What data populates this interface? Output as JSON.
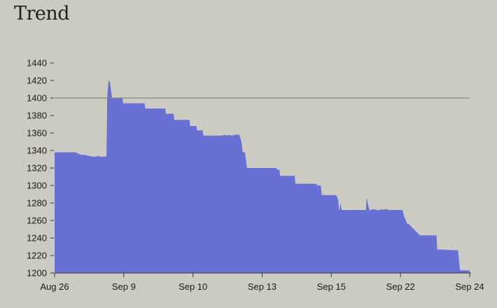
{
  "chart_data": {
    "type": "area",
    "title": "Trend",
    "xlabel": "",
    "ylabel": "",
    "ylim": [
      1200,
      1440
    ],
    "yticks": [
      1200,
      1220,
      1240,
      1260,
      1280,
      1300,
      1320,
      1340,
      1360,
      1380,
      1400,
      1420,
      1440
    ],
    "x_tick_labels": [
      "Aug 26",
      "Sep 9",
      "Sep 10",
      "Sep 13",
      "Sep 15",
      "Sep 22",
      "Sep 24"
    ],
    "x_tick_positions": [
      0,
      1,
      2,
      3,
      4,
      5,
      6
    ],
    "xlim": [
      0,
      6
    ],
    "reference_line": 1400,
    "colors": {
      "fill": "#6870d4",
      "reference_line": "#888880",
      "axis": "#333333"
    },
    "series": [
      {
        "x": [
          0,
          0.3,
          0.38,
          0.43,
          0.55,
          0.6,
          0.62,
          0.65,
          0.75,
          0.755,
          0.76,
          0.78,
          0.8,
          0.83,
          0.85,
          0.88,
          0.98,
          0.99,
          1.02,
          1.3,
          1.31,
          1.6,
          1.61,
          1.72,
          1.73,
          1.95,
          1.96,
          2.05,
          2.06,
          2.14,
          2.15,
          2.42,
          2.45,
          2.5,
          2.52,
          2.55,
          2.62,
          2.63,
          2.66,
          2.67,
          2.7,
          2.72,
          2.73,
          2.75,
          2.76,
          2.78,
          2.79,
          3.2,
          3.22,
          3.25,
          3.26,
          3.47,
          3.48,
          3.78,
          3.8,
          3.85,
          3.86,
          4.05,
          4.08,
          4.1,
          4.11,
          4.12,
          4.13,
          4.15,
          4.18,
          4.5,
          4.51,
          4.55,
          4.57,
          4.6,
          4.62,
          4.65,
          4.7,
          4.73,
          4.75,
          4.77,
          4.8,
          4.82,
          5.03,
          5.05,
          5.1,
          5.12,
          5.28,
          5.29,
          5.52,
          5.53,
          5.83,
          5.86,
          6.0
        ],
        "values": [
          1338,
          1338,
          1335,
          1335,
          1333,
          1333,
          1334,
          1333,
          1333,
          1360,
          1400,
          1420,
          1418,
          1400,
          1400,
          1400,
          1400,
          1394,
          1394,
          1394,
          1388,
          1388,
          1382,
          1382,
          1375,
          1375,
          1368,
          1368,
          1363,
          1363,
          1357,
          1357,
          1358,
          1357,
          1358,
          1357,
          1358,
          1358,
          1358,
          1358,
          1350,
          1338,
          1338,
          1338,
          1332,
          1320,
          1320,
          1320,
          1318,
          1318,
          1311,
          1311,
          1302,
          1302,
          1300,
          1300,
          1289,
          1289,
          1288,
          1283,
          1272,
          1272,
          1280,
          1272,
          1272,
          1272,
          1286,
          1272,
          1272,
          1273,
          1273,
          1272,
          1272,
          1273,
          1272,
          1273,
          1273,
          1272,
          1272,
          1265,
          1256,
          1256,
          1243,
          1243,
          1243,
          1227,
          1226,
          1203,
          1203
        ]
      }
    ]
  }
}
